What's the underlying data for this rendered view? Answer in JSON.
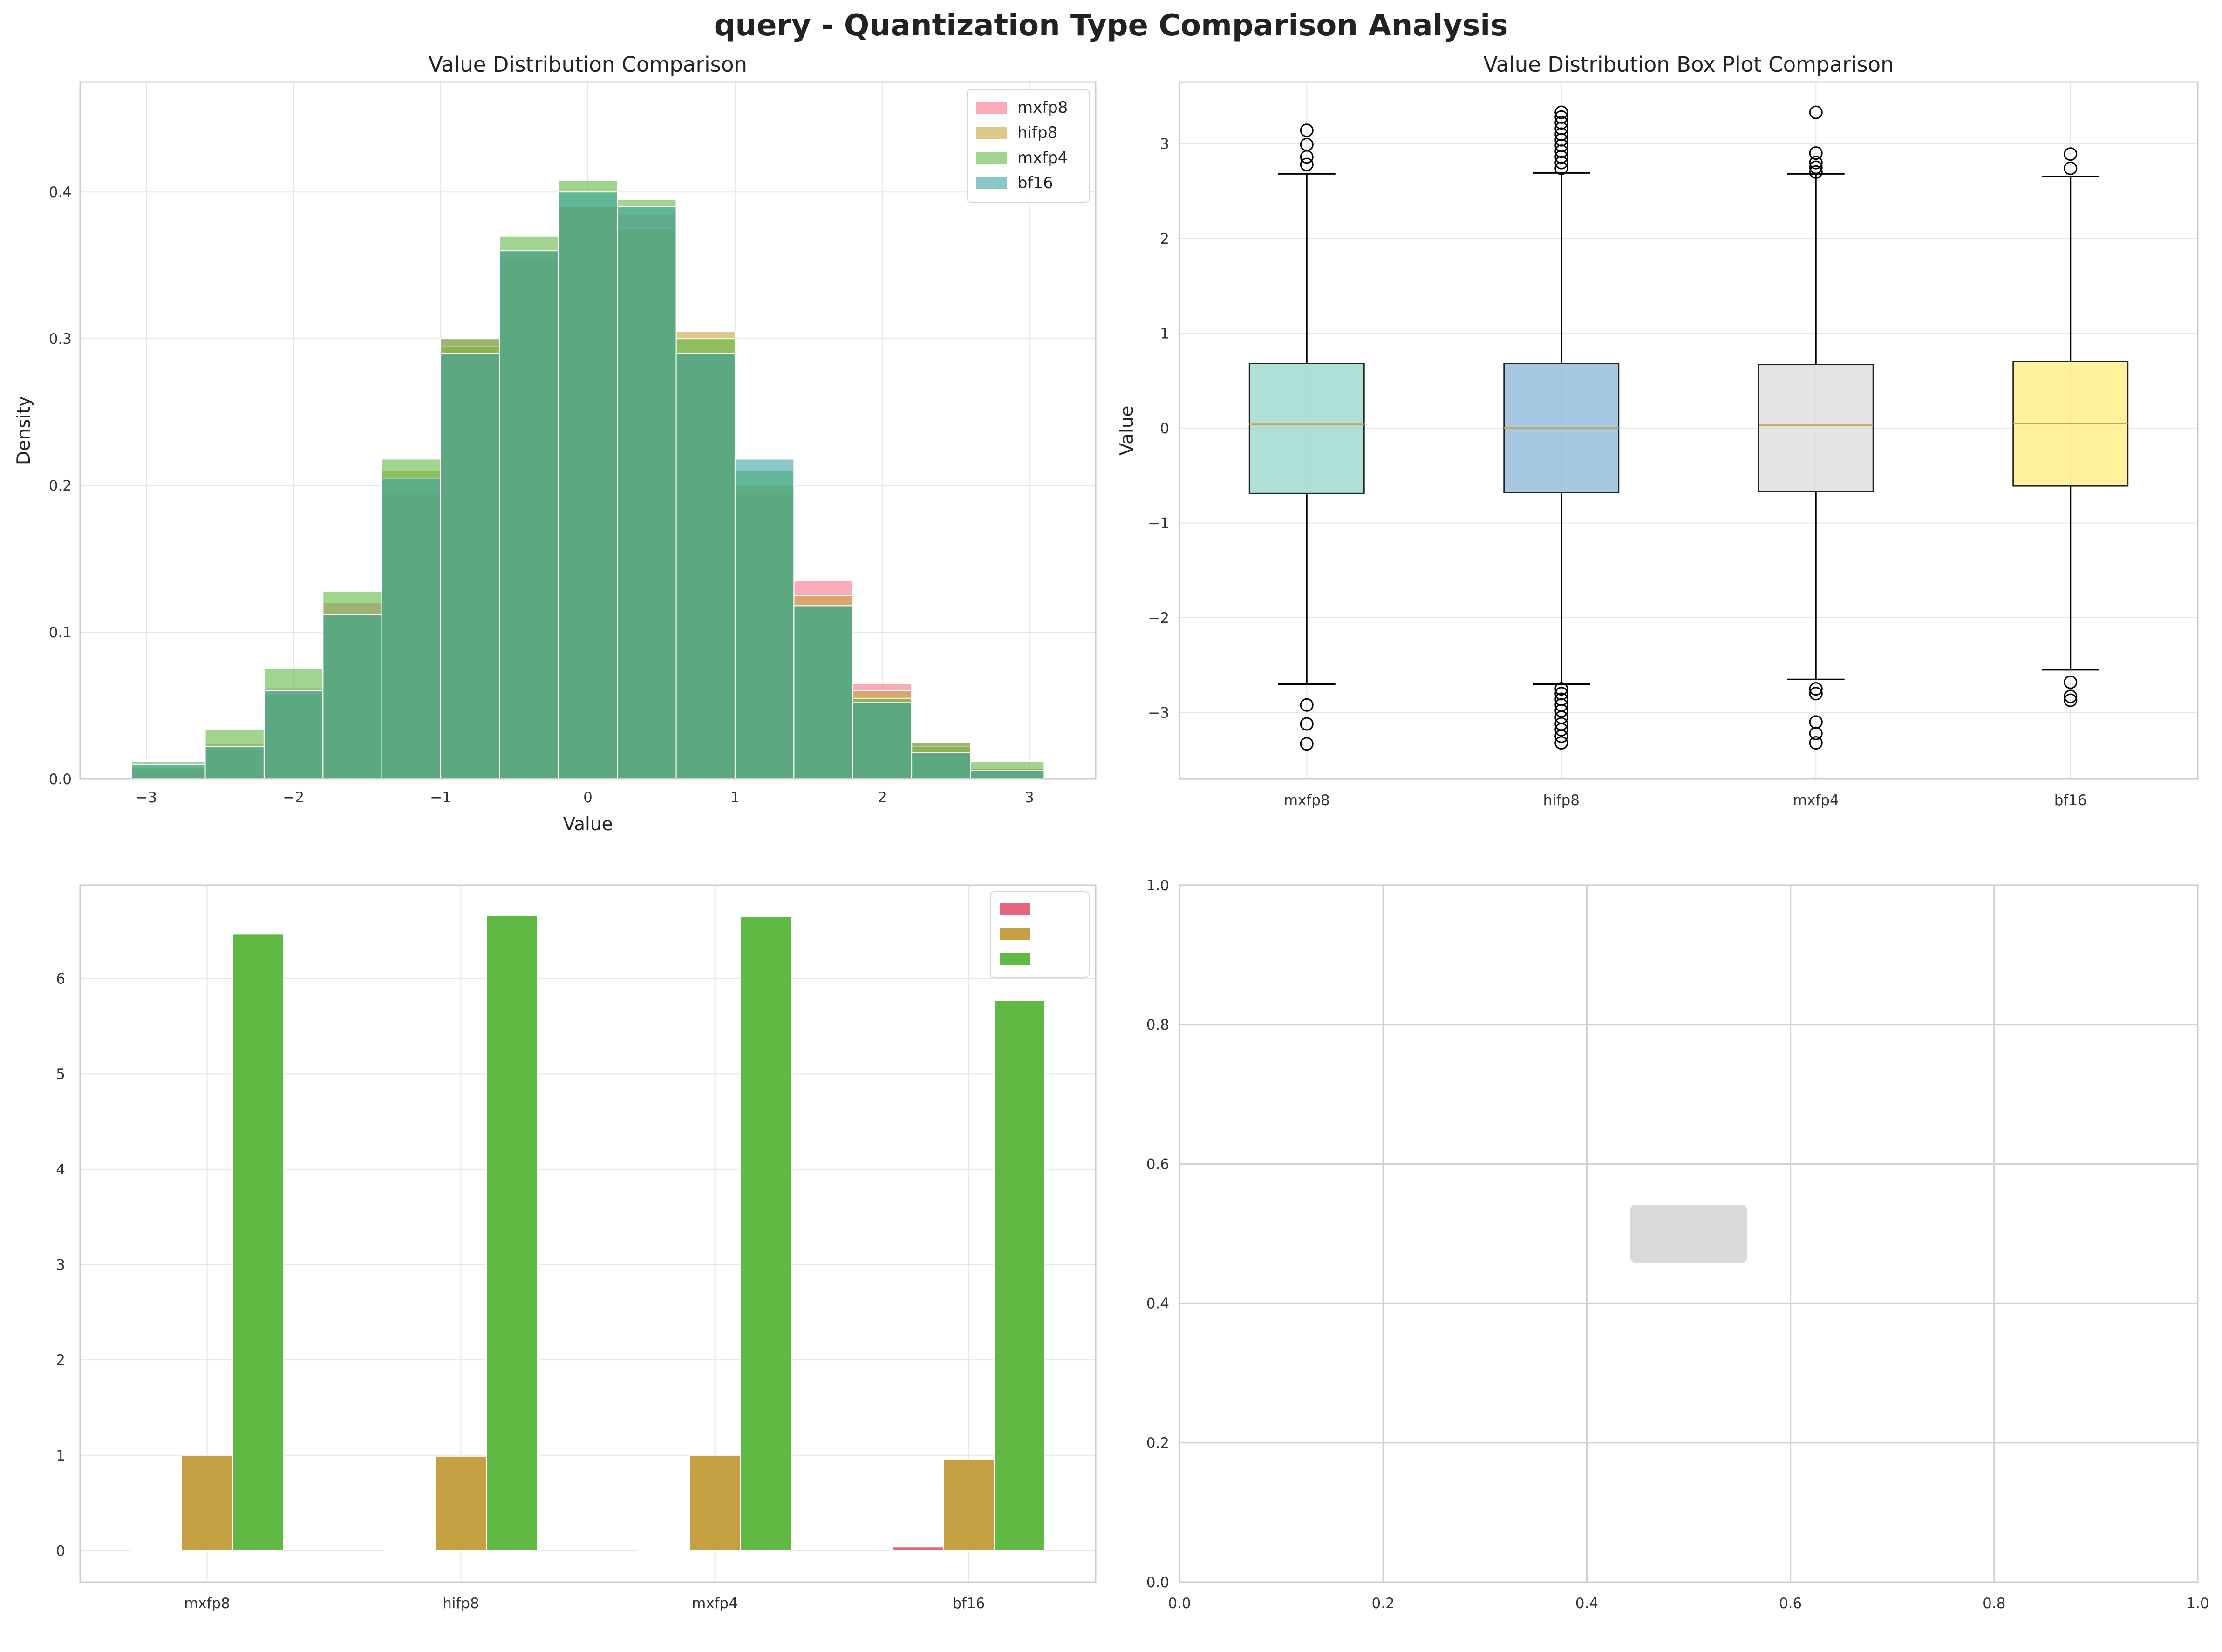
{
  "figure": {
    "title": "query - Quantization Type Comparison Analysis"
  },
  "colors": {
    "mxfp8": "#f77189",
    "hifp8": "#c4a43b",
    "mxfp4": "#5fb943",
    "bf16": "#3ba3a0",
    "box_mxfp8": "#8dd3c7",
    "box_hifp8": "#80b1d3",
    "box_mxfp4": "#d9d9d9",
    "box_bf16": "#ffed6f",
    "stat_mean": "#e8647e",
    "stat_std": "#c4a043",
    "stat_range": "#5fb943",
    "median_line": "#c8a050"
  },
  "chart_data": [
    {
      "type": "histogram",
      "title": "Value Distribution Comparison",
      "xlabel": "Value",
      "ylabel": "Density",
      "xlim": [
        -3.45,
        3.45
      ],
      "ylim": [
        0,
        0.475
      ],
      "x_ticks": [
        -3,
        -2,
        -1,
        0,
        1,
        2,
        3
      ],
      "y_ticks": [
        0.0,
        0.1,
        0.2,
        0.3,
        0.4
      ],
      "legend": "top-right",
      "bins": [
        [
          -3.1,
          -2.6
        ],
        [
          -2.6,
          -2.2
        ],
        [
          -2.2,
          -1.8
        ],
        [
          -1.8,
          -1.4
        ],
        [
          -1.4,
          -1.0
        ],
        [
          -1.0,
          -0.6
        ],
        [
          -0.6,
          -0.2
        ],
        [
          -0.2,
          0.2
        ],
        [
          0.2,
          0.6
        ],
        [
          0.6,
          1.0
        ],
        [
          1.0,
          1.4
        ],
        [
          1.4,
          1.8
        ],
        [
          1.8,
          2.2
        ],
        [
          2.2,
          2.6
        ],
        [
          2.6,
          3.1
        ]
      ],
      "series": [
        {
          "name": "mxfp8",
          "values": [
            0.006,
            0.02,
            0.062,
            0.12,
            0.195,
            0.3,
            0.355,
            0.39,
            0.385,
            0.29,
            0.195,
            0.135,
            0.065,
            0.025,
            0.008
          ]
        },
        {
          "name": "hifp8",
          "values": [
            0.008,
            0.024,
            0.058,
            0.112,
            0.21,
            0.295,
            0.36,
            0.39,
            0.375,
            0.305,
            0.2,
            0.125,
            0.06,
            0.022,
            0.007
          ]
        },
        {
          "name": "mxfp4",
          "values": [
            0.012,
            0.034,
            0.075,
            0.128,
            0.218,
            0.3,
            0.37,
            0.408,
            0.395,
            0.3,
            0.21,
            0.118,
            0.055,
            0.025,
            0.012
          ]
        },
        {
          "name": "bf16",
          "values": [
            0.01,
            0.022,
            0.06,
            0.112,
            0.205,
            0.29,
            0.36,
            0.4,
            0.39,
            0.29,
            0.218,
            0.118,
            0.052,
            0.018,
            0.006
          ]
        }
      ]
    },
    {
      "type": "box",
      "title": "Value Distribution Box Plot Comparison",
      "xlabel": "",
      "ylabel": "Value",
      "ylim": [
        -3.7,
        3.65
      ],
      "y_ticks": [
        -3,
        -2,
        -1,
        0,
        1,
        2,
        3
      ],
      "categories": [
        "mxfp8",
        "hifp8",
        "mxfp4",
        "bf16"
      ],
      "boxes": [
        {
          "name": "mxfp8",
          "whisker_low": -2.7,
          "q1": -0.69,
          "median": 0.04,
          "q3": 0.68,
          "whisker_high": 2.68,
          "outliers": [
            -3.33,
            -3.12,
            -2.92,
            2.78,
            2.86,
            2.99,
            3.14
          ]
        },
        {
          "name": "hifp8",
          "whisker_low": -2.7,
          "q1": -0.68,
          "median": 0.0,
          "q3": 0.68,
          "whisker_high": 2.69,
          "outliers": [
            -3.32,
            -3.25,
            -3.18,
            -3.12,
            -3.05,
            -2.98,
            -2.92,
            -2.86,
            -2.8,
            -2.75,
            2.74,
            2.8,
            2.86,
            2.92,
            2.98,
            3.04,
            3.1,
            3.16,
            3.22,
            3.28,
            3.33
          ]
        },
        {
          "name": "mxfp4",
          "whisker_low": -2.65,
          "q1": -0.67,
          "median": 0.03,
          "q3": 0.67,
          "whisker_high": 2.68,
          "outliers": [
            -3.32,
            -3.22,
            -3.1,
            -2.8,
            -2.75,
            2.7,
            2.75,
            2.8,
            2.9,
            3.33
          ]
        },
        {
          "name": "bf16",
          "whisker_low": -2.55,
          "q1": -0.61,
          "median": 0.05,
          "q3": 0.7,
          "whisker_high": 2.65,
          "outliers": [
            -2.87,
            -2.83,
            -2.68,
            2.74,
            2.89
          ]
        }
      ]
    },
    {
      "type": "bar",
      "title": "",
      "xlabel": "",
      "ylabel": "",
      "ylim": [
        -0.33,
        6.98
      ],
      "y_ticks": [
        0,
        1,
        2,
        3,
        4,
        5,
        6
      ],
      "categories": [
        "mxfp8",
        "hifp8",
        "mxfp4",
        "bf16"
      ],
      "legend": "top-right",
      "series": [
        {
          "name": "",
          "values": [
            0.002,
            0.0,
            0.003,
            0.04
          ]
        },
        {
          "name": "",
          "values": [
            1.0,
            0.99,
            1.0,
            0.96
          ]
        },
        {
          "name": "",
          "values": [
            6.47,
            6.66,
            6.65,
            5.77
          ]
        }
      ]
    },
    {
      "type": "empty",
      "title": "",
      "xlim": [
        0.0,
        1.0
      ],
      "ylim": [
        0.0,
        1.0
      ],
      "x_ticks": [
        0.0,
        0.2,
        0.4,
        0.6,
        0.8,
        1.0
      ],
      "y_ticks": [
        0.0,
        0.2,
        0.4,
        0.6,
        0.8,
        1.0
      ],
      "annotation_lines": []
    }
  ]
}
